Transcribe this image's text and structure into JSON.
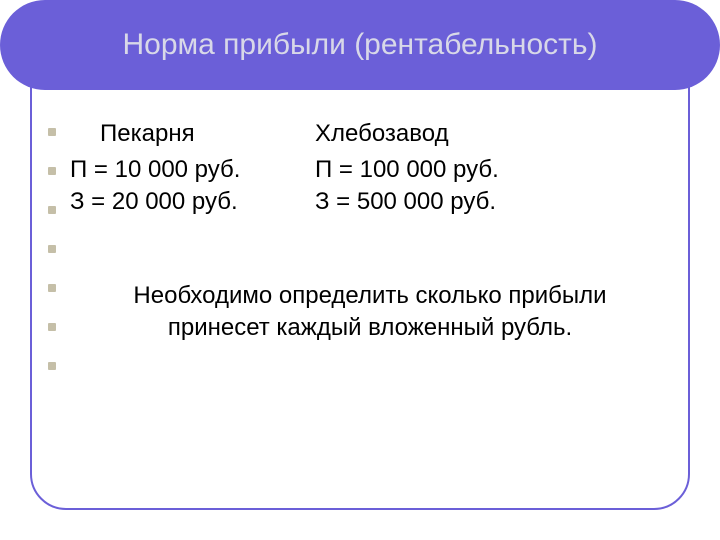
{
  "header": {
    "title": "Норма прибыли (рентабельность)"
  },
  "columns": {
    "left": {
      "title": "Пекарня",
      "profit": "П = 10 000 руб.",
      "cost": "З = 20 000 руб."
    },
    "right": {
      "title": "Хлебозавод",
      "profit": "П = 100 000 руб.",
      "cost": "З = 500 000 руб."
    }
  },
  "task": "Необходимо определить сколько прибыли принесет каждый вложенный рубль.",
  "colors": {
    "accent": "#6b5fd8",
    "header_text": "#d8d8e8",
    "body_text": "#000000",
    "bullet": "#c5bfa8",
    "background": "#ffffff"
  },
  "typography": {
    "title_fontsize": 30,
    "body_fontsize": 24,
    "font_family": "Arial"
  },
  "type": "infographic"
}
